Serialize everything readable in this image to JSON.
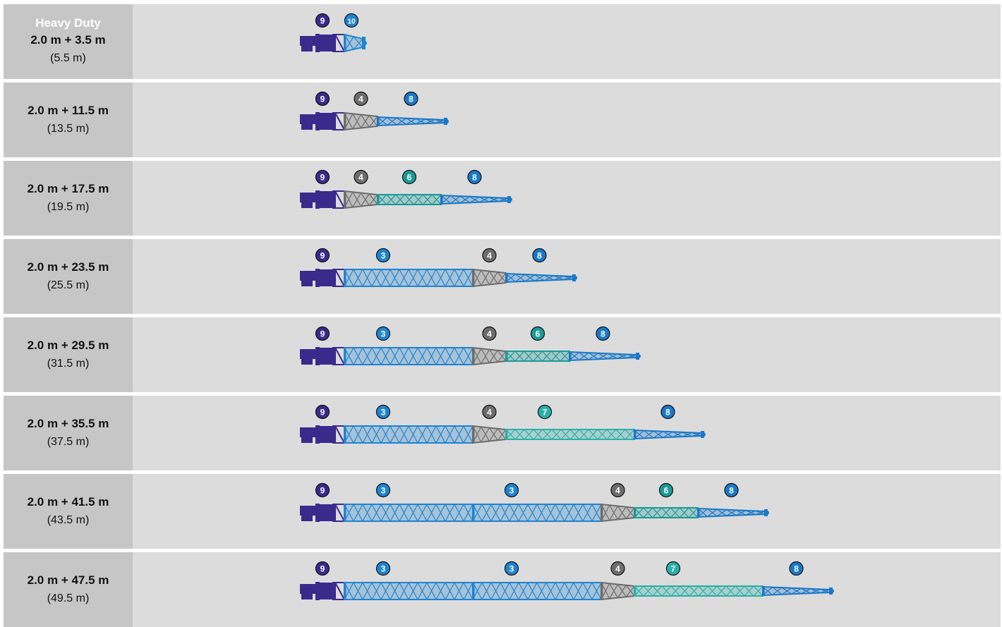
{
  "header_title": "Heavy Duty",
  "colors": {
    "base": "#3a2a8c",
    "section_3": "#1f84d2",
    "section_4": "#6d6d6d",
    "section_6": "#1a9a96",
    "section_7": "#2ab0a8",
    "section_8": "#1a78c8",
    "section_10": "#1f84d2"
  },
  "rows": [
    {
      "main": "2.0 m + 3.5 m",
      "total": "(5.5 m)",
      "parts": [
        "9",
        "10"
      ]
    },
    {
      "main": "2.0 m + 11.5 m",
      "total": "(13.5 m)",
      "parts": [
        "9",
        "4",
        "8"
      ]
    },
    {
      "main": "2.0 m + 17.5 m",
      "total": "(19.5 m)",
      "parts": [
        "9",
        "4",
        "6",
        "8"
      ]
    },
    {
      "main": "2.0 m + 23.5 m",
      "total": "(25.5 m)",
      "parts": [
        "9",
        "3",
        "4",
        "8"
      ]
    },
    {
      "main": "2.0 m + 29.5 m",
      "total": "(31.5 m)",
      "parts": [
        "9",
        "3",
        "4",
        "6",
        "8"
      ]
    },
    {
      "main": "2.0 m + 35.5 m",
      "total": "(37.5 m)",
      "parts": [
        "9",
        "3",
        "4",
        "7",
        "8"
      ]
    },
    {
      "main": "2.0 m + 41.5 m",
      "total": "(43.5 m)",
      "parts": [
        "9",
        "3",
        "3",
        "4",
        "6",
        "8"
      ]
    },
    {
      "main": "2.0 m + 47.5 m",
      "total": "(49.5 m)",
      "parts": [
        "9",
        "3",
        "3",
        "4",
        "7",
        "8"
      ]
    }
  ]
}
